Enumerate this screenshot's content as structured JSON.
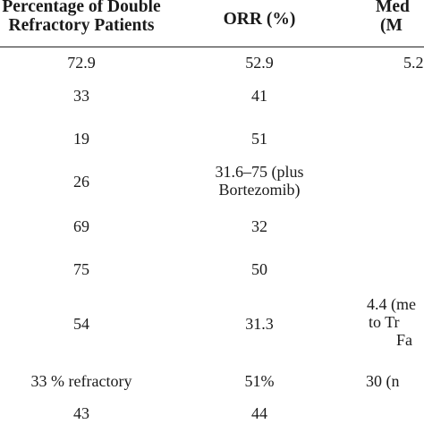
{
  "table": {
    "headers": [
      {
        "lines": [
          "Percentage of Double",
          "Refractory Patients"
        ]
      },
      {
        "lines": [
          "ORR (%)"
        ]
      },
      {
        "lines": [
          "Med",
          "(M"
        ]
      }
    ],
    "rows": [
      {
        "double_refractory": [
          "72.9"
        ],
        "orr": [
          "52.9"
        ],
        "median": [
          "5.2"
        ]
      },
      {
        "double_refractory": [
          "33"
        ],
        "orr": [
          "41"
        ],
        "median": []
      },
      {
        "double_refractory": [
          "19"
        ],
        "orr": [
          "51"
        ],
        "median": []
      },
      {
        "double_refractory": [
          "26"
        ],
        "orr": [
          "31.6–75 (plus",
          "Bortezomib)"
        ],
        "median": []
      },
      {
        "double_refractory": [
          "69"
        ],
        "orr": [
          "32"
        ],
        "median": []
      },
      {
        "double_refractory": [
          "75"
        ],
        "orr": [
          "50"
        ],
        "median": []
      },
      {
        "double_refractory": [
          "54"
        ],
        "orr": [
          "31.3"
        ],
        "median": [
          "4.4 (me",
          "to Tr",
          "Fa"
        ]
      },
      {
        "double_refractory": [
          "33 % refractory"
        ],
        "orr": [
          "51%"
        ],
        "median": [
          "30 (n"
        ]
      },
      {
        "double_refractory": [
          "43"
        ],
        "orr": [
          "44"
        ],
        "median": []
      }
    ]
  }
}
